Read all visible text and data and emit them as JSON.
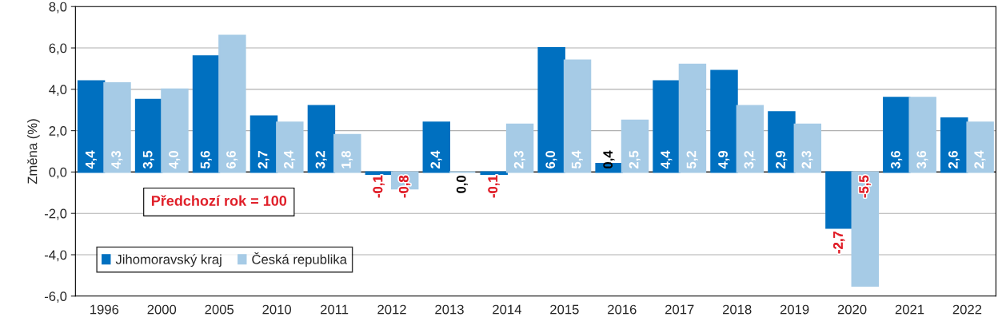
{
  "chart_data": {
    "type": "bar",
    "ylabel": "Změna (%)",
    "categories": [
      "1996",
      "2000",
      "2005",
      "2010",
      "2011",
      "2012",
      "2013",
      "2014",
      "2015",
      "2016",
      "2017",
      "2018",
      "2019",
      "2020",
      "2021",
      "2022"
    ],
    "series": [
      {
        "name": "Jihomoravský kraj",
        "color": "#0070c0",
        "values": [
          4.4,
          3.5,
          5.6,
          2.7,
          3.2,
          -0.1,
          2.4,
          -0.1,
          6.0,
          0.4,
          4.4,
          4.9,
          2.9,
          -2.7,
          3.6,
          2.6
        ],
        "value_labels": [
          "4,4",
          "3,5",
          "5,6",
          "2,7",
          "3,2",
          "-0,1",
          "2,4",
          "-0,1",
          "6,0",
          "0,4",
          "4,4",
          "4,9",
          "2,9",
          "-2,7",
          "3,6",
          "2,6"
        ]
      },
      {
        "name": "Česká republika",
        "color": "#a6cbe6",
        "values": [
          4.3,
          4.0,
          6.6,
          2.4,
          1.8,
          -0.8,
          0.0,
          2.3,
          5.4,
          2.5,
          5.2,
          3.2,
          2.3,
          -5.5,
          3.6,
          2.4
        ],
        "value_labels": [
          "4,3",
          "4,0",
          "6,6",
          "2,4",
          "1,8",
          "-0,8",
          "0,0",
          "2,3",
          "5,4",
          "2,5",
          "5,2",
          "3,2",
          "2,3",
          "-5,5",
          "3,6",
          "2,4"
        ]
      }
    ],
    "ylim": [
      -6,
      8
    ],
    "yticks": [
      {
        "value": -6,
        "label": "-6,0"
      },
      {
        "value": -4,
        "label": "-4,0"
      },
      {
        "value": -2,
        "label": "-2,0"
      },
      {
        "value": 0,
        "label": "0,0"
      },
      {
        "value": 2,
        "label": "2,0"
      },
      {
        "value": 4,
        "label": "4,0"
      },
      {
        "value": 6,
        "label": "6,0"
      },
      {
        "value": 8,
        "label": "8,0"
      }
    ],
    "grid": "y",
    "legend": "bottom left",
    "annotations": [
      "Předchozí rok = 100"
    ]
  }
}
